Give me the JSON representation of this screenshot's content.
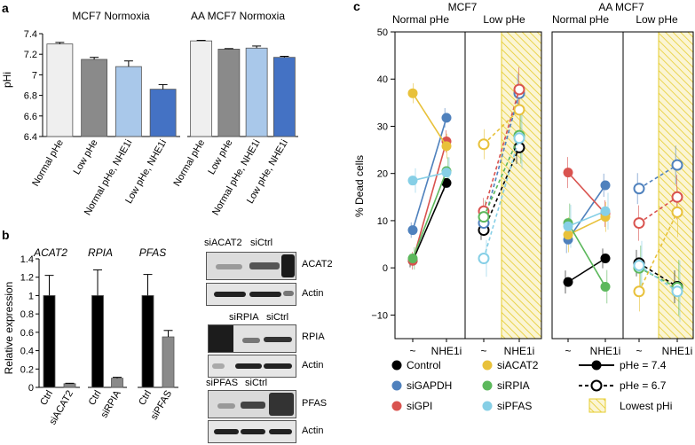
{
  "colors": {
    "control": "#000000",
    "siGAPDH": "#4f81bd",
    "siGPI": "#d9534f",
    "siACAT2": "#e8c13a",
    "siRPIA": "#5cb85c",
    "siPFAS": "#86cfe6",
    "hatch": "#e6cc2e",
    "bar_white": "#efefef",
    "bar_gray": "#8a8a8a",
    "bar_light_blue": "#a9c8ea",
    "bar_blue": "#4472c4"
  },
  "panel_labels": {
    "a": "a",
    "b": "b",
    "c": "c"
  },
  "chart_data": [
    {
      "type": "bar",
      "panel": "a",
      "title": "MCF7 Normoxia",
      "ylabel": "pHi",
      "ylim": [
        6.4,
        7.4
      ],
      "yticks": [
        "6.4",
        "6.6",
        "6.8",
        "7",
        "7.2",
        "7.4"
      ],
      "categories": [
        "Normal pHe",
        "Low pHe",
        "Normal pHe, NHE1i",
        "Low pHe, NHE1i"
      ],
      "values": [
        7.3,
        7.15,
        7.08,
        6.86
      ],
      "errors": [
        0.015,
        0.02,
        0.055,
        0.045
      ]
    },
    {
      "type": "bar",
      "panel": "a",
      "title": "AA MCF7 Normoxia",
      "ylim": [
        6.4,
        7.4
      ],
      "categories": [
        "Normal pHe",
        "Low pHe",
        "Normal pHe, NHE1i",
        "Low pHe, NHE1i"
      ],
      "values": [
        7.33,
        7.25,
        7.26,
        7.17
      ],
      "errors": [
        0.005,
        0.005,
        0.02,
        0.01
      ]
    },
    {
      "type": "bar",
      "panel": "b",
      "title": "ACAT2",
      "ylabel": "Relative expression",
      "ylim": [
        0,
        1.4
      ],
      "yticks": [
        "0",
        "0.2",
        "0.4",
        "0.6",
        "0.8",
        "1",
        "1.2",
        "1.4"
      ],
      "categories": [
        "Ctrl",
        "siACAT2"
      ],
      "values": [
        1.0,
        0.04
      ],
      "errors": [
        0.22,
        0.005
      ]
    },
    {
      "type": "bar",
      "panel": "b",
      "title": "RPIA",
      "ylim": [
        0,
        1.4
      ],
      "categories": [
        "Ctrl",
        "siRPIA"
      ],
      "values": [
        1.0,
        0.1
      ],
      "errors": [
        0.28,
        0.01
      ]
    },
    {
      "type": "bar",
      "panel": "b",
      "title": "PFAS",
      "ylim": [
        0,
        1.4
      ],
      "categories": [
        "Ctrl",
        "siPFAS"
      ],
      "values": [
        1.0,
        0.55
      ],
      "errors": [
        0.23,
        0.07
      ]
    },
    {
      "type": "line",
      "panel": "c",
      "ylabel": "% Dead cells",
      "ylim": [
        -15,
        50
      ],
      "yticks": [
        "−10",
        "0",
        "10",
        "20",
        "30",
        "40",
        "50"
      ],
      "groups": [
        {
          "title": "MCF7",
          "subgroups": [
            "Normal pHe",
            "Low pHe"
          ]
        },
        {
          "title": "AA MCF7",
          "subgroups": [
            "Normal pHe",
            "Low pHe"
          ]
        }
      ],
      "x_tick_labels": [
        "~",
        "NHE1i"
      ],
      "series": [
        {
          "name": "Control",
          "values": [
            [
              1.5,
              18
            ],
            [
              8,
              25.5
            ],
            [
              -3,
              2
            ],
            [
              1,
              -4
            ]
          ]
        },
        {
          "name": "siGAPDH",
          "values": [
            [
              8,
              31.8
            ],
            [
              9.5,
              37
            ],
            [
              6,
              17.5
            ],
            [
              16.8,
              21.8
            ]
          ]
        },
        {
          "name": "siGPI",
          "values": [
            [
              1.5,
              26.8
            ],
            [
              12,
              37.8
            ],
            [
              20.2,
              11.5
            ],
            [
              9.5,
              15
            ]
          ]
        },
        {
          "name": "siACAT2",
          "values": [
            [
              37,
              25.8
            ],
            [
              26.2,
              33.5
            ],
            [
              7,
              10.8
            ],
            [
              -5,
              11.8
            ]
          ]
        },
        {
          "name": "siRPIA",
          "values": [
            [
              2,
              20.5
            ],
            [
              10.8,
              28
            ],
            [
              9.5,
              -4
            ],
            [
              0,
              -4.2
            ]
          ]
        },
        {
          "name": "siPFAS",
          "values": [
            [
              18.5,
              20.2
            ],
            [
              2,
              27.5
            ],
            [
              8.8,
              12
            ],
            [
              0.5,
              -5
            ]
          ]
        }
      ],
      "errors": [
        [
          2,
          2.5
        ],
        [
          3,
          5
        ],
        [
          3.5,
          3
        ],
        [
          4,
          5
        ]
      ]
    }
  ],
  "legend": {
    "items": [
      "Control",
      "siGAPDH",
      "siGPI",
      "siACAT2",
      "siRPIA",
      "siPFAS"
    ],
    "style_items": [
      "pHe = 7.4",
      "pHe = 6.7",
      "Lowest pHi"
    ]
  },
  "blots": [
    {
      "header": [
        "siACAT2",
        "siCtrl"
      ],
      "rows": [
        "ACAT2",
        "Actin"
      ]
    },
    {
      "header": [
        "siRPIA",
        "siCtrl"
      ],
      "rows": [
        "RPIA",
        "Actin"
      ]
    },
    {
      "header": [
        "siPFAS",
        "siCtrl"
      ],
      "rows": [
        "PFAS",
        "Actin"
      ]
    }
  ]
}
